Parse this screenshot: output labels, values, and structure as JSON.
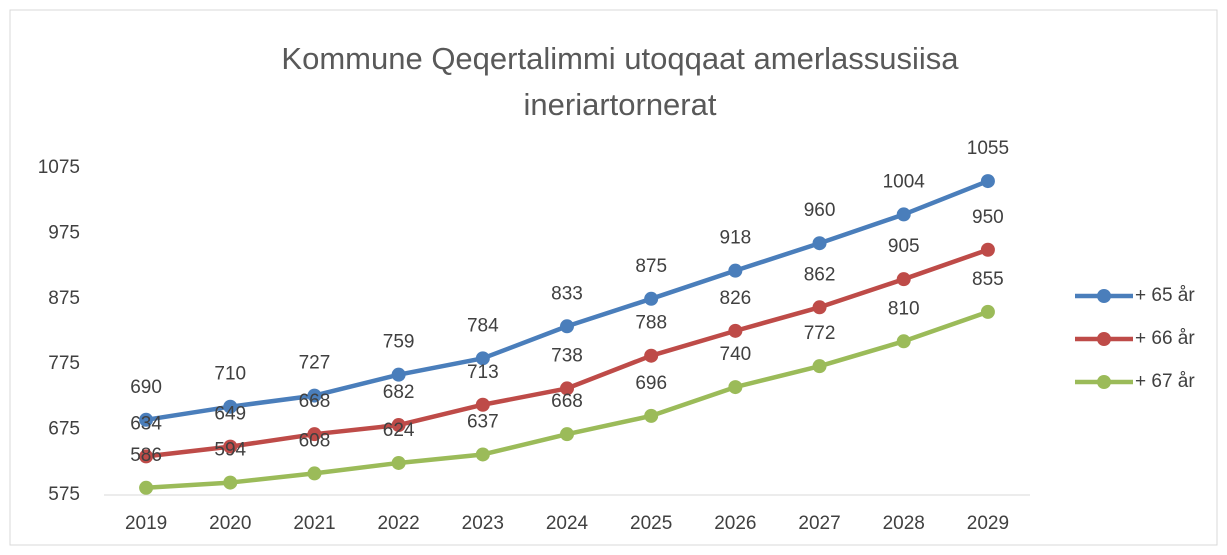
{
  "chart_data": {
    "type": "line",
    "title": "Kommune Qeqertalimmi utoqqaat amerlassusiisa ineriartornerat",
    "categories": [
      "2019",
      "2020",
      "2021",
      "2022",
      "2023",
      "2024",
      "2025",
      "2026",
      "2027",
      "2028",
      "2029"
    ],
    "series": [
      {
        "name": "+ 65 år",
        "color": "#4a7ebb",
        "values": [
          690,
          710,
          727,
          759,
          784,
          833,
          875,
          918,
          960,
          1004,
          1055
        ]
      },
      {
        "name": "+ 66 år",
        "color": "#be4b48",
        "values": [
          634,
          649,
          668,
          682,
          713,
          738,
          788,
          826,
          862,
          905,
          950
        ]
      },
      {
        "name": "+ 67 år",
        "color": "#9bbb59",
        "values": [
          586,
          594,
          608,
          624,
          637,
          668,
          696,
          740,
          772,
          810,
          855
        ]
      }
    ],
    "ylim": [
      575,
      1075
    ],
    "yticks": [
      575,
      675,
      775,
      875,
      975,
      1075
    ],
    "grid": false,
    "legend": "right"
  }
}
